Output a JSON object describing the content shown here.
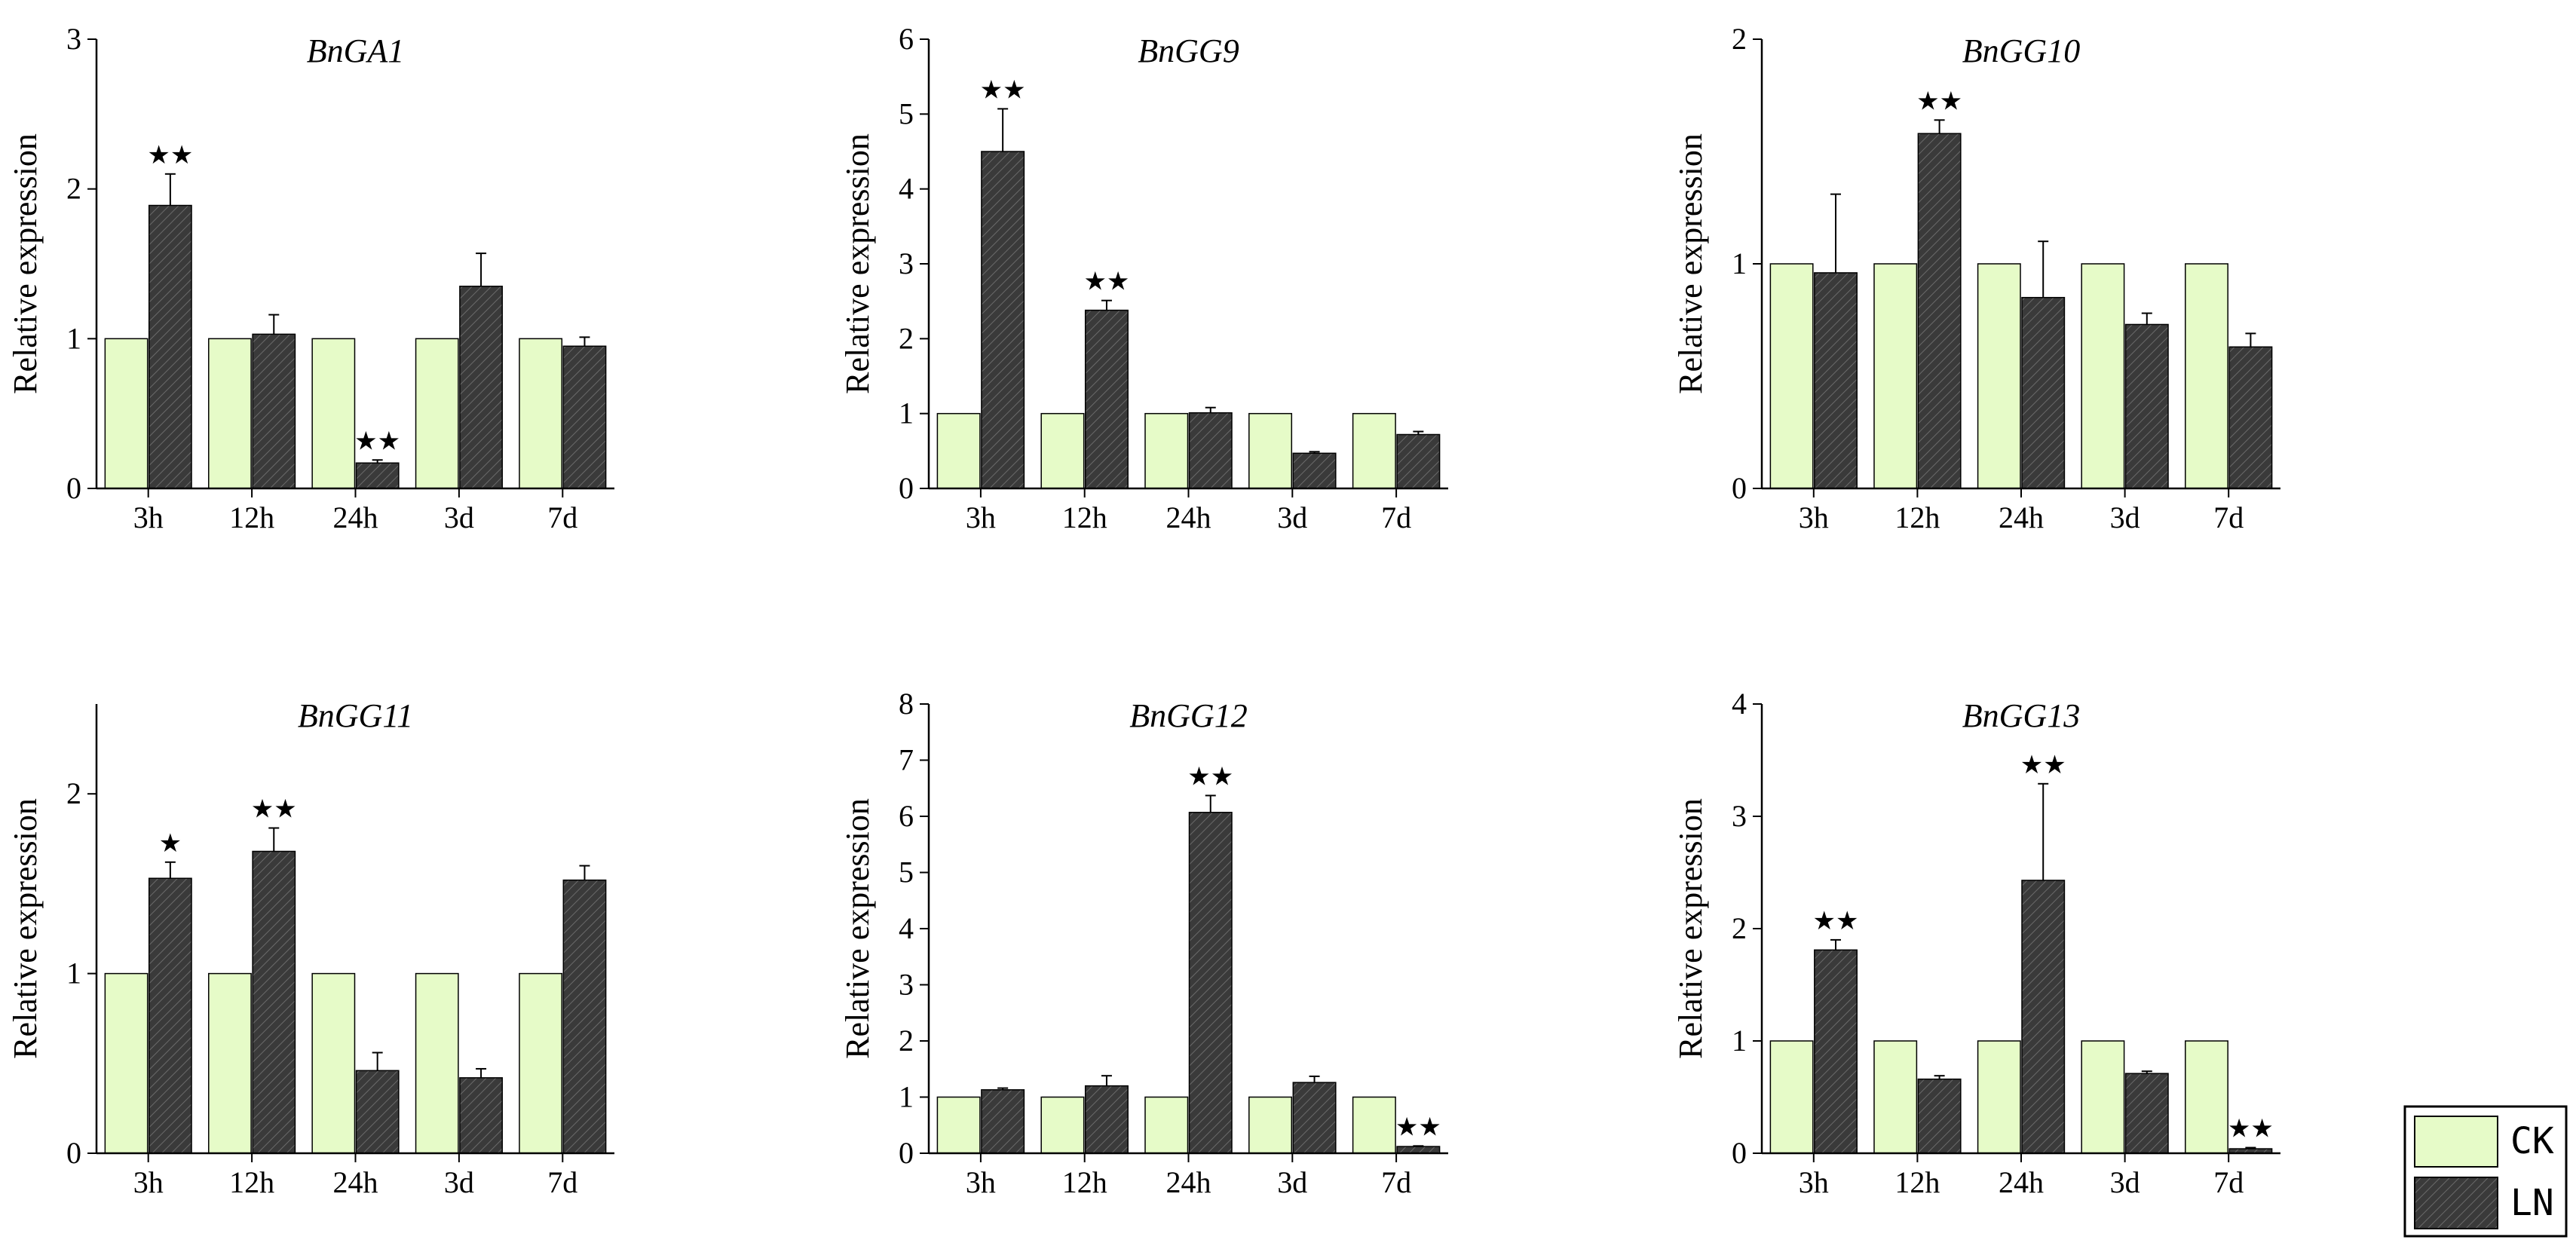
{
  "colors": {
    "ck": "#e6fbc8",
    "ln": "#3a3a3a",
    "axis": "#000000"
  },
  "legend": {
    "items": [
      "CK",
      "LN"
    ]
  },
  "chart_data": [
    {
      "type": "bar",
      "title": "BnGA1",
      "ylabel": "Relative expression",
      "categories": [
        "3h",
        "12h",
        "24h",
        "3d",
        "7d"
      ],
      "ylim": [
        0,
        3
      ],
      "yticks": [
        0,
        1,
        2,
        3
      ],
      "series": [
        {
          "name": "CK",
          "values": [
            1,
            1,
            1,
            1,
            1
          ],
          "errors": [
            0,
            0,
            0,
            0,
            0
          ]
        },
        {
          "name": "LN",
          "values": [
            1.89,
            1.03,
            0.17,
            1.35,
            0.95
          ],
          "errors": [
            0.21,
            0.13,
            0.02,
            0.22,
            0.06
          ]
        }
      ],
      "stars": [
        "★★",
        "",
        "★★",
        "",
        ""
      ]
    },
    {
      "type": "bar",
      "title": "BnGG9",
      "ylabel": "Relative expression",
      "categories": [
        "3h",
        "12h",
        "24h",
        "3d",
        "7d"
      ],
      "ylim": [
        0,
        6
      ],
      "yticks": [
        0,
        1,
        2,
        3,
        4,
        5,
        6
      ],
      "series": [
        {
          "name": "CK",
          "values": [
            1,
            1,
            1,
            1,
            1
          ],
          "errors": [
            0,
            0,
            0,
            0,
            0
          ]
        },
        {
          "name": "LN",
          "values": [
            4.5,
            2.38,
            1.01,
            0.47,
            0.72
          ],
          "errors": [
            0.57,
            0.13,
            0.07,
            0.02,
            0.04
          ]
        }
      ],
      "stars": [
        "★★",
        "★★",
        "",
        "",
        ""
      ]
    },
    {
      "type": "bar",
      "title": "BnGG10",
      "ylabel": "Relative expression",
      "categories": [
        "3h",
        "12h",
        "24h",
        "3d",
        "7d"
      ],
      "ylim": [
        0,
        2
      ],
      "yticks": [
        0,
        1,
        2
      ],
      "series": [
        {
          "name": "CK",
          "values": [
            1,
            1,
            1,
            1,
            1
          ],
          "errors": [
            0,
            0,
            0,
            0,
            0
          ]
        },
        {
          "name": "LN",
          "values": [
            0.96,
            1.58,
            0.85,
            0.73,
            0.63
          ],
          "errors": [
            0.35,
            0.06,
            0.25,
            0.05,
            0.06
          ]
        }
      ],
      "stars": [
        "",
        "★★",
        "",
        "",
        ""
      ]
    },
    {
      "type": "bar",
      "title": "BnGG11",
      "ylabel": "Relative expression",
      "categories": [
        "3h",
        "12h",
        "24h",
        "3d",
        "7d"
      ],
      "ylim": [
        0,
        2.5
      ],
      "yticks": [
        0,
        1,
        2
      ],
      "series": [
        {
          "name": "CK",
          "values": [
            1,
            1,
            1,
            1,
            1
          ],
          "errors": [
            0,
            0,
            0,
            0,
            0
          ]
        },
        {
          "name": "LN",
          "values": [
            1.53,
            1.68,
            0.46,
            0.42,
            1.52
          ],
          "errors": [
            0.09,
            0.13,
            0.1,
            0.05,
            0.08
          ]
        }
      ],
      "stars": [
        "★",
        "★★",
        "",
        "",
        ""
      ]
    },
    {
      "type": "bar",
      "title": "BnGG12",
      "ylabel": "Relative expression",
      "categories": [
        "3h",
        "12h",
        "24h",
        "3d",
        "7d"
      ],
      "ylim": [
        0,
        8
      ],
      "yticks": [
        0,
        1,
        2,
        3,
        4,
        5,
        6,
        7,
        8
      ],
      "series": [
        {
          "name": "CK",
          "values": [
            1,
            1,
            1,
            1,
            1
          ],
          "errors": [
            0,
            0,
            0,
            0,
            0
          ]
        },
        {
          "name": "LN",
          "values": [
            1.13,
            1.2,
            6.07,
            1.26,
            0.12
          ],
          "errors": [
            0.03,
            0.18,
            0.3,
            0.11,
            0.01
          ]
        }
      ],
      "stars": [
        "",
        "",
        "★★",
        "",
        "★★"
      ]
    },
    {
      "type": "bar",
      "title": "BnGG13",
      "ylabel": "Relative expression",
      "categories": [
        "3h",
        "12h",
        "24h",
        "3d",
        "7d"
      ],
      "ylim": [
        0,
        4
      ],
      "yticks": [
        0,
        1,
        2,
        3,
        4
      ],
      "series": [
        {
          "name": "CK",
          "values": [
            1,
            1,
            1,
            1,
            1
          ],
          "errors": [
            0,
            0,
            0,
            0,
            0
          ]
        },
        {
          "name": "LN",
          "values": [
            1.81,
            0.66,
            2.43,
            0.71,
            0.04
          ],
          "errors": [
            0.09,
            0.03,
            0.86,
            0.02,
            0.01
          ]
        }
      ],
      "stars": [
        "★★",
        "",
        "★★",
        "",
        "★★"
      ]
    }
  ]
}
